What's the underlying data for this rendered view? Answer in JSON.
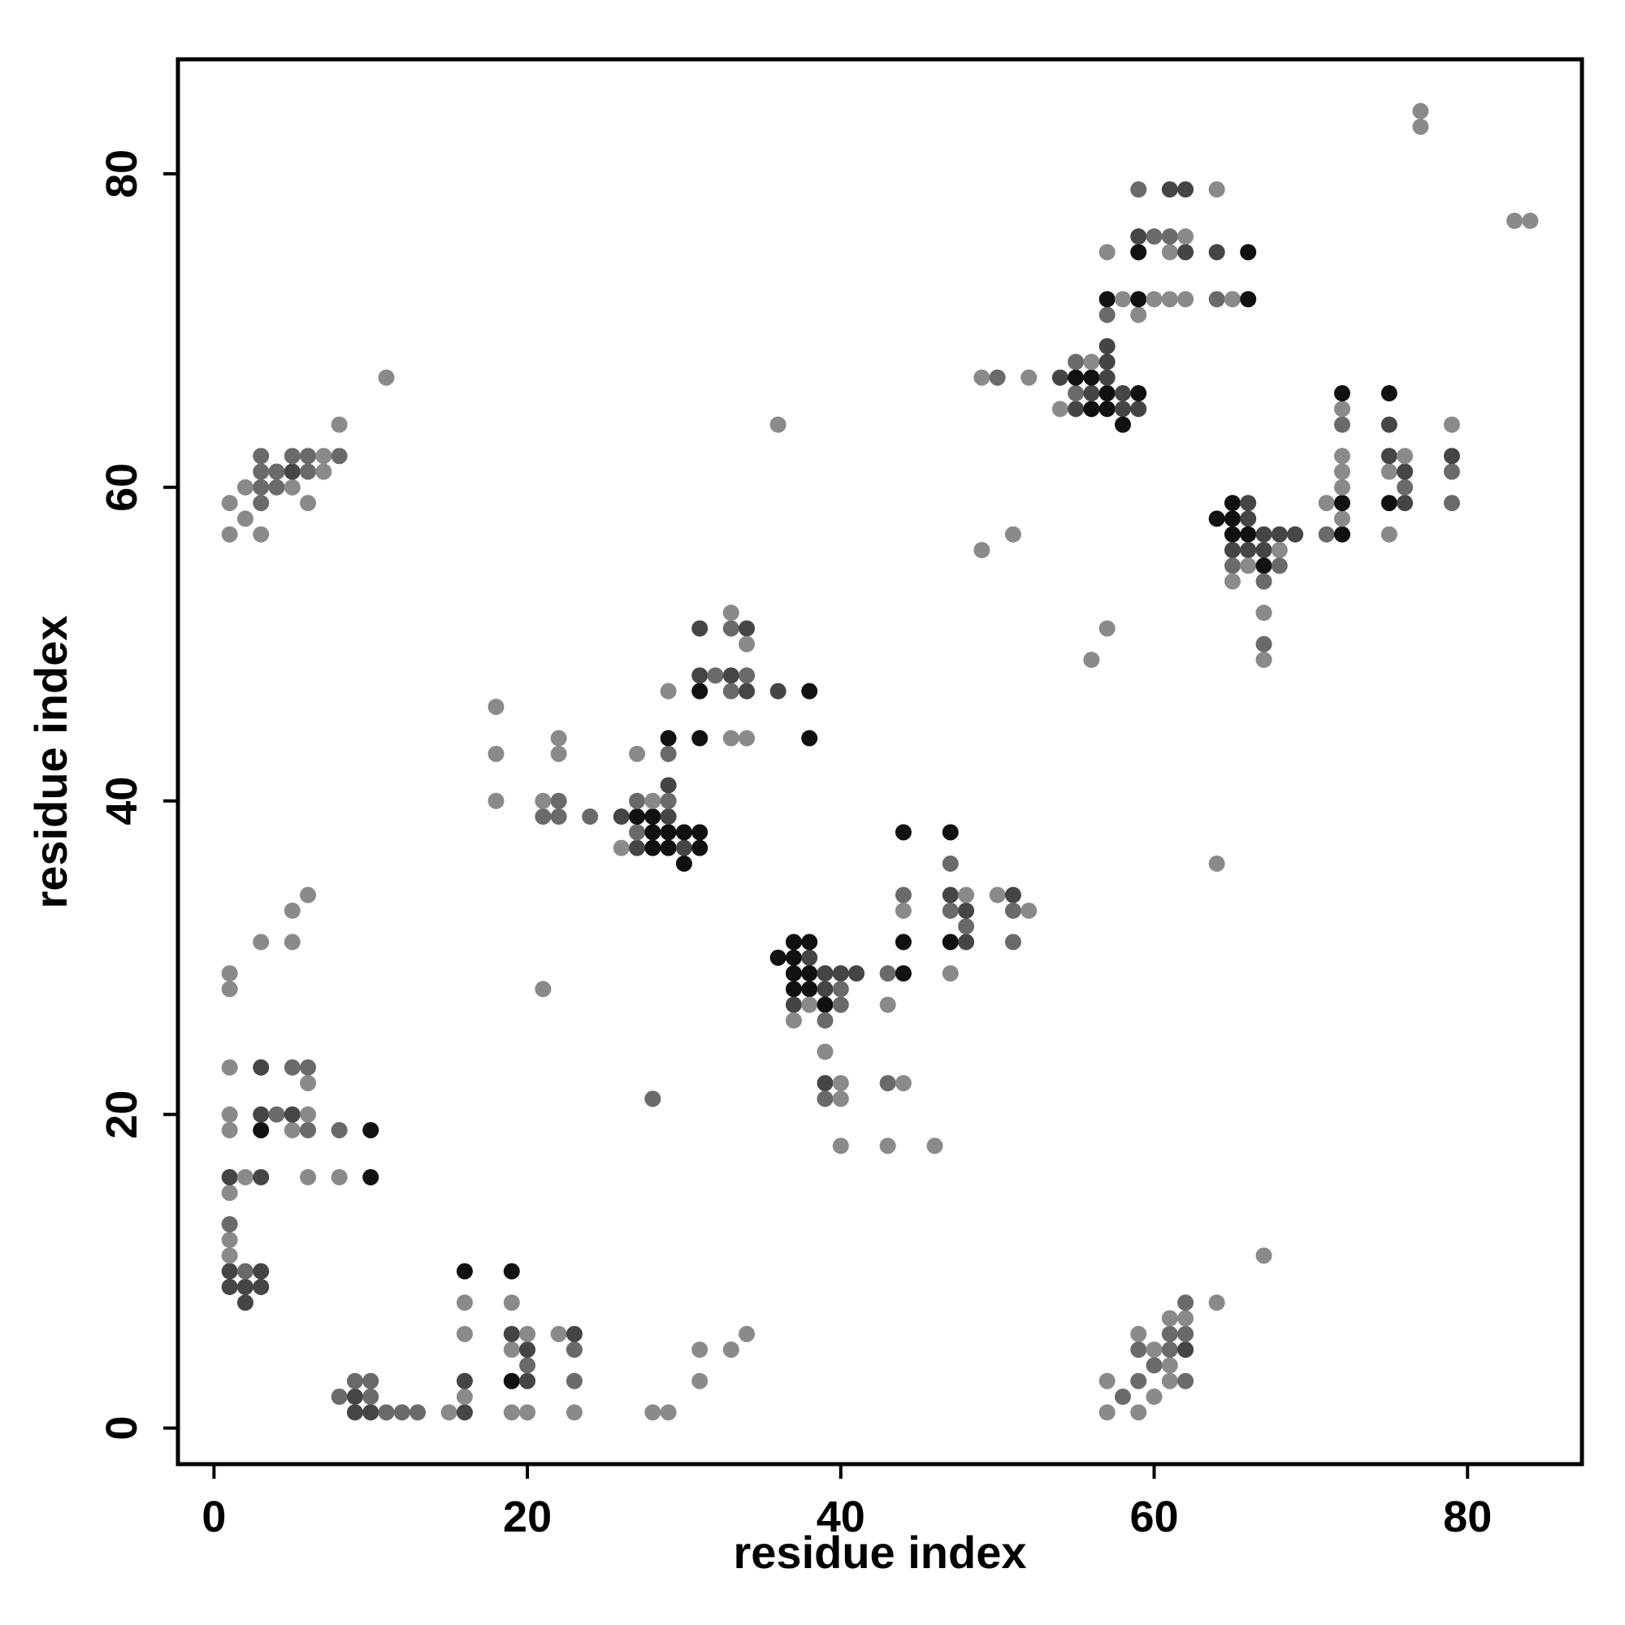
{
  "chart_data": {
    "type": "scatter",
    "title": "",
    "xlabel": "residue index",
    "ylabel": "residue index",
    "xlim": [
      -2.3,
      87.3
    ],
    "ylim": [
      -2.3,
      87.3
    ],
    "xticks": [
      0,
      20,
      40,
      60,
      80
    ],
    "yticks": [
      0,
      20,
      40,
      60,
      80
    ],
    "grid": false,
    "legend": "none",
    "colors": {
      "light": "#8a8a8a",
      "mid": "#6a6a6a",
      "dark": "#454545",
      "black": "#111111"
    },
    "points": [
      [
        57,
        1,
        "light"
      ],
      [
        59,
        1,
        "light"
      ],
      [
        58,
        2,
        "mid"
      ],
      [
        60,
        2,
        "light"
      ],
      [
        57,
        3,
        "light"
      ],
      [
        59,
        3,
        "mid"
      ],
      [
        61,
        3,
        "light"
      ],
      [
        62,
        3,
        "mid"
      ],
      [
        60,
        4,
        "mid"
      ],
      [
        61,
        4,
        "light"
      ],
      [
        59,
        5,
        "mid"
      ],
      [
        60,
        5,
        "light"
      ],
      [
        61,
        5,
        "mid"
      ],
      [
        62,
        5,
        "dark"
      ],
      [
        59,
        6,
        "light"
      ],
      [
        61,
        6,
        "mid"
      ],
      [
        62,
        6,
        "mid"
      ],
      [
        61,
        7,
        "light"
      ],
      [
        62,
        7,
        "light"
      ],
      [
        62,
        8,
        "mid"
      ],
      [
        64,
        8,
        "light"
      ],
      [
        67,
        11,
        "light"
      ],
      [
        9,
        1,
        "dark"
      ],
      [
        10,
        1,
        "dark"
      ],
      [
        11,
        1,
        "mid"
      ],
      [
        12,
        1,
        "mid"
      ],
      [
        13,
        1,
        "mid"
      ],
      [
        8,
        2,
        "mid"
      ],
      [
        9,
        2,
        "dark"
      ],
      [
        10,
        2,
        "mid"
      ],
      [
        9,
        3,
        "mid"
      ],
      [
        10,
        3,
        "mid"
      ],
      [
        15,
        1,
        "light"
      ],
      [
        16,
        1,
        "dark"
      ],
      [
        16,
        2,
        "light"
      ],
      [
        16,
        3,
        "dark"
      ],
      [
        16,
        6,
        "light"
      ],
      [
        16,
        8,
        "light"
      ],
      [
        16,
        10,
        "black"
      ],
      [
        19,
        1,
        "light"
      ],
      [
        20,
        1,
        "light"
      ],
      [
        19,
        3,
        "black"
      ],
      [
        20,
        3,
        "dark"
      ],
      [
        20,
        4,
        "mid"
      ],
      [
        19,
        5,
        "light"
      ],
      [
        20,
        5,
        "dark"
      ],
      [
        19,
        6,
        "dark"
      ],
      [
        20,
        6,
        "light"
      ],
      [
        19,
        8,
        "light"
      ],
      [
        19,
        10,
        "black"
      ],
      [
        23,
        1,
        "light"
      ],
      [
        23,
        3,
        "mid"
      ],
      [
        23,
        5,
        "mid"
      ],
      [
        22,
        6,
        "light"
      ],
      [
        23,
        6,
        "dark"
      ],
      [
        28,
        1,
        "light"
      ],
      [
        29,
        1,
        "light"
      ],
      [
        31,
        3,
        "light"
      ],
      [
        31,
        5,
        "light"
      ],
      [
        33,
        5,
        "light"
      ],
      [
        34,
        6,
        "light"
      ],
      [
        1,
        9,
        "dark"
      ],
      [
        2,
        9,
        "dark"
      ],
      [
        3,
        9,
        "dark"
      ],
      [
        2,
        8,
        "dark"
      ],
      [
        1,
        10,
        "dark"
      ],
      [
        2,
        10,
        "mid"
      ],
      [
        3,
        10,
        "dark"
      ],
      [
        1,
        11,
        "light"
      ],
      [
        1,
        12,
        "light"
      ],
      [
        1,
        13,
        "mid"
      ],
      [
        1,
        15,
        "light"
      ],
      [
        1,
        16,
        "dark"
      ],
      [
        2,
        16,
        "light"
      ],
      [
        3,
        16,
        "dark"
      ],
      [
        6,
        16,
        "light"
      ],
      [
        8,
        16,
        "light"
      ],
      [
        10,
        16,
        "black"
      ],
      [
        1,
        19,
        "light"
      ],
      [
        3,
        19,
        "black"
      ],
      [
        5,
        19,
        "light"
      ],
      [
        6,
        19,
        "mid"
      ],
      [
        8,
        19,
        "mid"
      ],
      [
        10,
        19,
        "black"
      ],
      [
        1,
        20,
        "light"
      ],
      [
        3,
        20,
        "dark"
      ],
      [
        4,
        20,
        "mid"
      ],
      [
        5,
        20,
        "dark"
      ],
      [
        6,
        20,
        "light"
      ],
      [
        6,
        22,
        "light"
      ],
      [
        1,
        23,
        "light"
      ],
      [
        3,
        23,
        "dark"
      ],
      [
        5,
        23,
        "mid"
      ],
      [
        6,
        23,
        "mid"
      ],
      [
        1,
        28,
        "light"
      ],
      [
        1,
        29,
        "light"
      ],
      [
        3,
        31,
        "light"
      ],
      [
        5,
        31,
        "light"
      ],
      [
        5,
        33,
        "light"
      ],
      [
        6,
        34,
        "light"
      ],
      [
        1,
        57,
        "light"
      ],
      [
        3,
        57,
        "light"
      ],
      [
        1,
        59,
        "light"
      ],
      [
        3,
        59,
        "mid"
      ],
      [
        6,
        59,
        "light"
      ],
      [
        2,
        58,
        "light"
      ],
      [
        2,
        60,
        "light"
      ],
      [
        3,
        60,
        "mid"
      ],
      [
        4,
        60,
        "mid"
      ],
      [
        5,
        60,
        "light"
      ],
      [
        3,
        61,
        "mid"
      ],
      [
        4,
        61,
        "mid"
      ],
      [
        5,
        61,
        "dark"
      ],
      [
        6,
        61,
        "mid"
      ],
      [
        7,
        61,
        "light"
      ],
      [
        3,
        62,
        "mid"
      ],
      [
        5,
        62,
        "mid"
      ],
      [
        6,
        62,
        "mid"
      ],
      [
        7,
        62,
        "light"
      ],
      [
        8,
        62,
        "mid"
      ],
      [
        8,
        64,
        "light"
      ],
      [
        11,
        67,
        "light"
      ],
      [
        21,
        28,
        "light"
      ],
      [
        28,
        21,
        "mid"
      ],
      [
        18,
        40,
        "light"
      ],
      [
        18,
        43,
        "light"
      ],
      [
        18,
        46,
        "light"
      ],
      [
        21,
        39,
        "mid"
      ],
      [
        22,
        39,
        "mid"
      ],
      [
        21,
        40,
        "light"
      ],
      [
        22,
        40,
        "mid"
      ],
      [
        22,
        43,
        "light"
      ],
      [
        22,
        44,
        "light"
      ],
      [
        24,
        39,
        "mid"
      ],
      [
        26,
        37,
        "light"
      ],
      [
        27,
        37,
        "dark"
      ],
      [
        28,
        37,
        "black"
      ],
      [
        29,
        37,
        "black"
      ],
      [
        30,
        37,
        "dark"
      ],
      [
        31,
        37,
        "black"
      ],
      [
        27,
        38,
        "mid"
      ],
      [
        28,
        38,
        "black"
      ],
      [
        29,
        38,
        "black"
      ],
      [
        30,
        38,
        "black"
      ],
      [
        31,
        38,
        "black"
      ],
      [
        30,
        36,
        "black"
      ],
      [
        26,
        39,
        "dark"
      ],
      [
        27,
        39,
        "black"
      ],
      [
        28,
        39,
        "black"
      ],
      [
        29,
        39,
        "dark"
      ],
      [
        27,
        40,
        "mid"
      ],
      [
        28,
        40,
        "light"
      ],
      [
        29,
        40,
        "mid"
      ],
      [
        29,
        41,
        "dark"
      ],
      [
        27,
        43,
        "light"
      ],
      [
        29,
        43,
        "mid"
      ],
      [
        29,
        44,
        "black"
      ],
      [
        31,
        44,
        "black"
      ],
      [
        29,
        47,
        "light"
      ],
      [
        31,
        47,
        "black"
      ],
      [
        33,
        47,
        "mid"
      ],
      [
        34,
        47,
        "dark"
      ],
      [
        31,
        48,
        "dark"
      ],
      [
        32,
        48,
        "mid"
      ],
      [
        33,
        48,
        "dark"
      ],
      [
        34,
        48,
        "mid"
      ],
      [
        31,
        51,
        "dark"
      ],
      [
        33,
        51,
        "mid"
      ],
      [
        34,
        51,
        "dark"
      ],
      [
        33,
        52,
        "light"
      ],
      [
        34,
        50,
        "light"
      ],
      [
        33,
        44,
        "light"
      ],
      [
        34,
        44,
        "light"
      ],
      [
        36,
        47,
        "dark"
      ],
      [
        38,
        47,
        "black"
      ],
      [
        38,
        44,
        "black"
      ],
      [
        36,
        64,
        "light"
      ],
      [
        36,
        30,
        "black"
      ],
      [
        37,
        30,
        "black"
      ],
      [
        38,
        30,
        "dark"
      ],
      [
        37,
        31,
        "black"
      ],
      [
        38,
        31,
        "black"
      ],
      [
        37,
        29,
        "black"
      ],
      [
        38,
        29,
        "black"
      ],
      [
        39,
        29,
        "dark"
      ],
      [
        40,
        29,
        "dark"
      ],
      [
        41,
        29,
        "dark"
      ],
      [
        37,
        28,
        "black"
      ],
      [
        38,
        28,
        "black"
      ],
      [
        39,
        28,
        "dark"
      ],
      [
        40,
        28,
        "mid"
      ],
      [
        37,
        27,
        "dark"
      ],
      [
        38,
        27,
        "light"
      ],
      [
        39,
        27,
        "black"
      ],
      [
        40,
        27,
        "mid"
      ],
      [
        37,
        26,
        "light"
      ],
      [
        39,
        26,
        "mid"
      ],
      [
        39,
        24,
        "light"
      ],
      [
        39,
        22,
        "dark"
      ],
      [
        40,
        22,
        "light"
      ],
      [
        39,
        21,
        "mid"
      ],
      [
        40,
        21,
        "light"
      ],
      [
        40,
        18,
        "light"
      ],
      [
        43,
        27,
        "light"
      ],
      [
        43,
        29,
        "mid"
      ],
      [
        44,
        29,
        "black"
      ],
      [
        44,
        31,
        "black"
      ],
      [
        44,
        33,
        "light"
      ],
      [
        44,
        34,
        "mid"
      ],
      [
        44,
        38,
        "black"
      ],
      [
        43,
        22,
        "mid"
      ],
      [
        44,
        22,
        "light"
      ],
      [
        43,
        18,
        "light"
      ],
      [
        46,
        18,
        "light"
      ],
      [
        47,
        29,
        "light"
      ],
      [
        47,
        31,
        "black"
      ],
      [
        48,
        31,
        "dark"
      ],
      [
        48,
        32,
        "mid"
      ],
      [
        47,
        33,
        "mid"
      ],
      [
        48,
        33,
        "dark"
      ],
      [
        47,
        34,
        "dark"
      ],
      [
        48,
        34,
        "light"
      ],
      [
        47,
        36,
        "mid"
      ],
      [
        47,
        38,
        "black"
      ],
      [
        50,
        34,
        "light"
      ],
      [
        51,
        34,
        "dark"
      ],
      [
        51,
        33,
        "mid"
      ],
      [
        52,
        33,
        "light"
      ],
      [
        51,
        31,
        "mid"
      ],
      [
        49,
        56,
        "light"
      ],
      [
        51,
        57,
        "light"
      ],
      [
        49,
        67,
        "light"
      ],
      [
        50,
        67,
        "mid"
      ],
      [
        52,
        67,
        "light"
      ],
      [
        54,
        65,
        "light"
      ],
      [
        55,
        65,
        "dark"
      ],
      [
        56,
        65,
        "black"
      ],
      [
        57,
        65,
        "black"
      ],
      [
        58,
        65,
        "dark"
      ],
      [
        59,
        65,
        "dark"
      ],
      [
        55,
        66,
        "mid"
      ],
      [
        56,
        66,
        "dark"
      ],
      [
        57,
        66,
        "black"
      ],
      [
        58,
        66,
        "dark"
      ],
      [
        59,
        66,
        "black"
      ],
      [
        58,
        64,
        "black"
      ],
      [
        54,
        67,
        "dark"
      ],
      [
        55,
        67,
        "black"
      ],
      [
        56,
        67,
        "black"
      ],
      [
        57,
        67,
        "dark"
      ],
      [
        55,
        68,
        "mid"
      ],
      [
        56,
        68,
        "light"
      ],
      [
        57,
        68,
        "dark"
      ],
      [
        57,
        69,
        "dark"
      ],
      [
        56,
        49,
        "light"
      ],
      [
        57,
        51,
        "light"
      ],
      [
        57,
        71,
        "mid"
      ],
      [
        59,
        71,
        "light"
      ],
      [
        57,
        72,
        "black"
      ],
      [
        58,
        72,
        "light"
      ],
      [
        59,
        72,
        "black"
      ],
      [
        60,
        72,
        "light"
      ],
      [
        61,
        72,
        "light"
      ],
      [
        62,
        72,
        "light"
      ],
      [
        57,
        75,
        "light"
      ],
      [
        59,
        75,
        "black"
      ],
      [
        61,
        75,
        "light"
      ],
      [
        62,
        75,
        "dark"
      ],
      [
        59,
        76,
        "dark"
      ],
      [
        60,
        76,
        "mid"
      ],
      [
        61,
        76,
        "mid"
      ],
      [
        62,
        76,
        "light"
      ],
      [
        59,
        79,
        "mid"
      ],
      [
        61,
        79,
        "dark"
      ],
      [
        62,
        79,
        "dark"
      ],
      [
        64,
        79,
        "light"
      ],
      [
        64,
        72,
        "mid"
      ],
      [
        65,
        72,
        "light"
      ],
      [
        66,
        72,
        "black"
      ],
      [
        64,
        75,
        "dark"
      ],
      [
        66,
        75,
        "black"
      ],
      [
        64,
        58,
        "black"
      ],
      [
        65,
        58,
        "black"
      ],
      [
        66,
        58,
        "dark"
      ],
      [
        65,
        59,
        "black"
      ],
      [
        66,
        59,
        "dark"
      ],
      [
        65,
        57,
        "black"
      ],
      [
        66,
        57,
        "black"
      ],
      [
        67,
        57,
        "dark"
      ],
      [
        68,
        57,
        "dark"
      ],
      [
        69,
        57,
        "dark"
      ],
      [
        65,
        56,
        "dark"
      ],
      [
        66,
        56,
        "dark"
      ],
      [
        67,
        56,
        "dark"
      ],
      [
        68,
        56,
        "light"
      ],
      [
        65,
        55,
        "mid"
      ],
      [
        66,
        55,
        "light"
      ],
      [
        67,
        55,
        "black"
      ],
      [
        68,
        55,
        "mid"
      ],
      [
        65,
        54,
        "light"
      ],
      [
        67,
        54,
        "mid"
      ],
      [
        67,
        52,
        "light"
      ],
      [
        67,
        50,
        "mid"
      ],
      [
        67,
        49,
        "light"
      ],
      [
        64,
        36,
        "light"
      ],
      [
        71,
        57,
        "mid"
      ],
      [
        72,
        57,
        "black"
      ],
      [
        71,
        59,
        "light"
      ],
      [
        72,
        58,
        "light"
      ],
      [
        72,
        59,
        "black"
      ],
      [
        72,
        60,
        "light"
      ],
      [
        72,
        61,
        "light"
      ],
      [
        72,
        62,
        "light"
      ],
      [
        72,
        64,
        "mid"
      ],
      [
        72,
        65,
        "light"
      ],
      [
        72,
        66,
        "black"
      ],
      [
        75,
        57,
        "light"
      ],
      [
        75,
        59,
        "black"
      ],
      [
        76,
        59,
        "dark"
      ],
      [
        75,
        61,
        "light"
      ],
      [
        76,
        60,
        "mid"
      ],
      [
        76,
        61,
        "dark"
      ],
      [
        75,
        62,
        "dark"
      ],
      [
        76,
        62,
        "light"
      ],
      [
        75,
        64,
        "dark"
      ],
      [
        75,
        66,
        "black"
      ],
      [
        79,
        59,
        "mid"
      ],
      [
        79,
        61,
        "mid"
      ],
      [
        79,
        62,
        "dark"
      ],
      [
        79,
        64,
        "light"
      ],
      [
        77,
        83,
        "light"
      ],
      [
        77,
        84,
        "light"
      ],
      [
        83,
        77,
        "light"
      ],
      [
        84,
        77,
        "light"
      ]
    ]
  }
}
